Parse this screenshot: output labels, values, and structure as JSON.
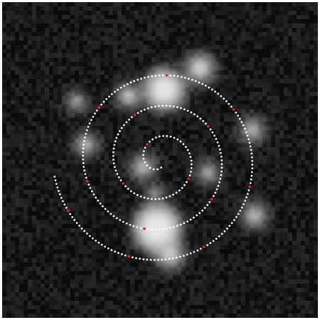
{
  "image": {
    "background_color": "#0b0b0b",
    "frame_color": "#ffffff",
    "spiral_dot_color": "#ffffff",
    "marker_color": "#e0262b",
    "glow_color": "#d8d8d8",
    "spiral_turns": 3.5,
    "marker_count": 15,
    "bright_spot_count": 12
  }
}
